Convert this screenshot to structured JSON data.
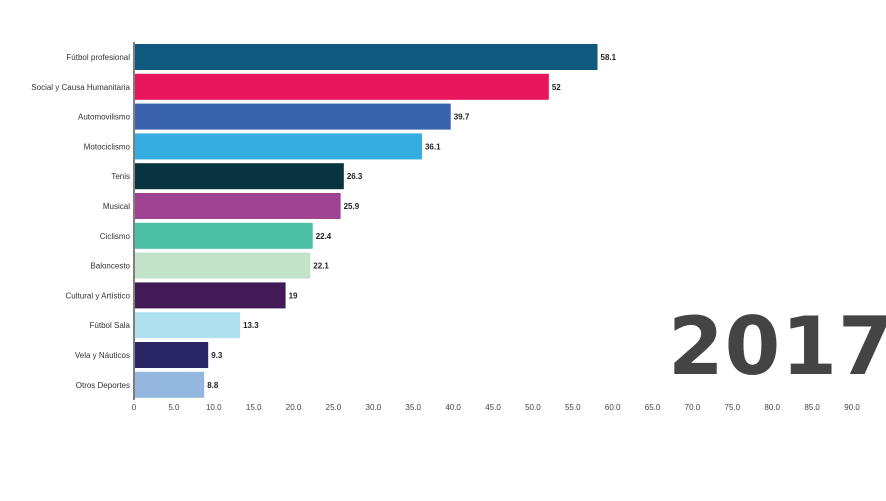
{
  "chart_data": {
    "type": "bar",
    "orientation": "horizontal",
    "title": "",
    "xlabel": "",
    "ylabel": "",
    "xlim": [
      0,
      90
    ],
    "x_ticks": [
      "0",
      "5.0",
      "10.0",
      "15.0",
      "20.0",
      "25.0",
      "30.0",
      "35.0",
      "40.0",
      "45.0",
      "50.0",
      "55.0",
      "60.0",
      "65.0",
      "70.0",
      "75.0",
      "80.0",
      "85.0",
      "90.0"
    ],
    "grid": false,
    "categories": [
      "Fútbol profesional",
      "Social y Causa Humanitaria",
      "Automovilismo",
      "Motociclismo",
      "Tenis",
      "Musical",
      "Ciclismo",
      "Baloncesto",
      "Cultural y Artístico",
      "Fútbol Sala",
      "Vela y Náuticos",
      "Otros Deportes"
    ],
    "values": [
      58.1,
      52,
      39.7,
      36.1,
      26.3,
      25.9,
      22.4,
      22.1,
      19,
      13.3,
      9.3,
      8.8
    ],
    "value_labels": [
      "58.1",
      "52",
      "39.7",
      "36.1",
      "26.3",
      "25.9",
      "22.4",
      "22.1",
      "19",
      "13.3",
      "9.3",
      "8.8"
    ],
    "colors": [
      "#0f5a7e",
      "#e8175d",
      "#3963ad",
      "#35ade1",
      "#08343f",
      "#9d4392",
      "#4bc0a5",
      "#c3e2c8",
      "#421a55",
      "#aee0ef",
      "#2a2564",
      "#93b7df"
    ],
    "year": "2017"
  }
}
